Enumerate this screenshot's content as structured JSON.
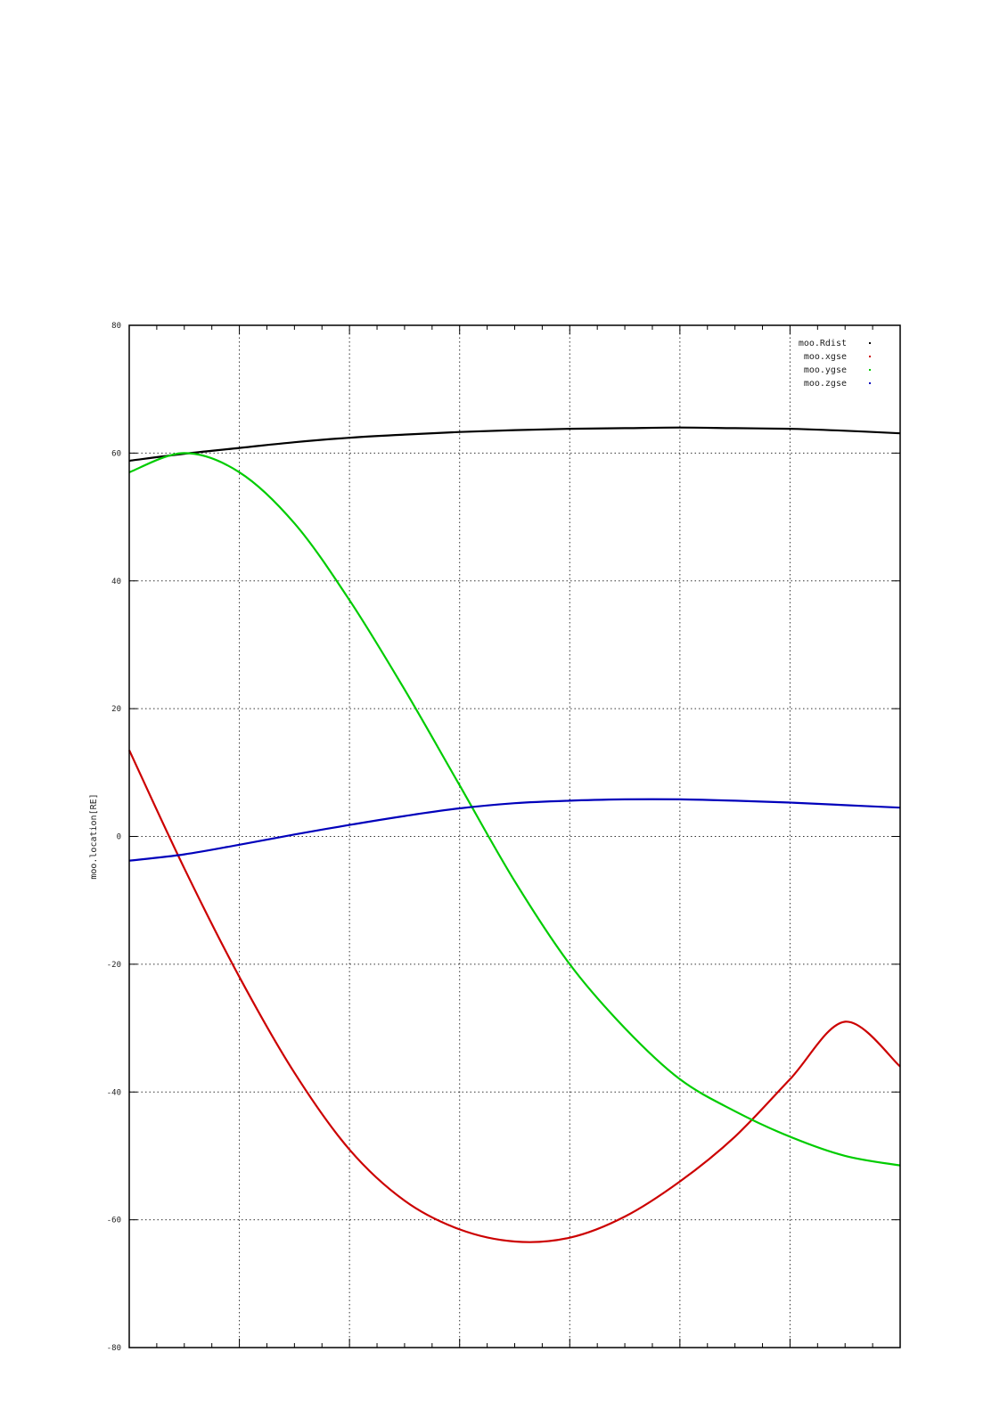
{
  "chart_data": {
    "type": "line",
    "title": "",
    "xlabel": "",
    "ylabel": "moo.location[RE]",
    "x_range": [
      0,
      1
    ],
    "ylim": [
      -80,
      80
    ],
    "y_ticks": [
      -80,
      -60,
      -40,
      -20,
      0,
      20,
      40,
      60,
      80
    ],
    "x_grid_divisions": 7,
    "x_minor_ticks_per_division": 4,
    "grid": true,
    "legend_position": "top-right",
    "x": [
      0,
      0.0714,
      0.1429,
      0.2143,
      0.2857,
      0.3571,
      0.4286,
      0.5,
      0.5714,
      0.6429,
      0.7143,
      0.7857,
      0.8571,
      0.9286,
      1.0
    ],
    "series": [
      {
        "name": "moo.Rdist",
        "color": "#000000",
        "values": [
          58.8,
          59.9,
          60.8,
          61.7,
          62.4,
          62.9,
          63.3,
          63.6,
          63.8,
          63.9,
          64.0,
          63.9,
          63.8,
          63.5,
          63.1
        ]
      },
      {
        "name": "moo.xgse",
        "color": "#cc0000",
        "values": [
          13.5,
          -5.0,
          -22.0,
          -37.0,
          -49.0,
          -57.0,
          -61.5,
          -63.4,
          -62.8,
          -59.5,
          -54.0,
          -47.0,
          -38.0,
          -29.0,
          -36.0
        ]
      },
      {
        "name": "moo.ygse",
        "color": "#00cc00",
        "values": [
          57.0,
          60.0,
          57.0,
          49.0,
          37.0,
          23.0,
          8.0,
          -7.0,
          -20.0,
          -30.0,
          -38.0,
          -43.0,
          -47.0,
          -50.0,
          -51.5
        ]
      },
      {
        "name": "moo.zgse",
        "color": "#0000bb",
        "values": [
          -3.8,
          -2.8,
          -1.3,
          0.3,
          1.8,
          3.2,
          4.4,
          5.2,
          5.6,
          5.8,
          5.8,
          5.6,
          5.3,
          4.9,
          4.5
        ]
      }
    ]
  }
}
